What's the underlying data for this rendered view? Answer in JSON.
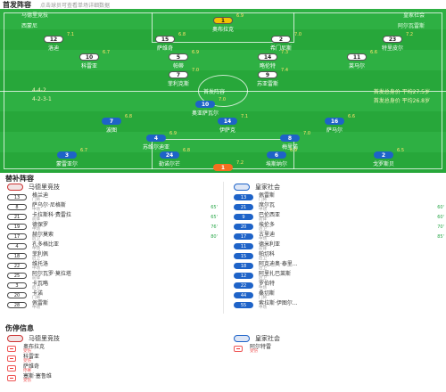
{
  "header": {
    "title": "首发阵容",
    "subtitle": "点击球员可查看单场详细数据"
  },
  "pitch": {
    "home_team": "马德里竞技",
    "away_team": "皇家社会",
    "home_formation": "4-4-2",
    "home_coach": "西蒙尼",
    "away_coach": "阿尔瓦雷斯",
    "stat_lines": [
      "4-4-2",
      "4-2-3-1",
      "首发总身价 平均27.5岁",
      "首发总身价 平均26.8岁"
    ],
    "center_label": "首发阵容",
    "home_players": [
      {
        "num": "1",
        "name": "奥布拉克",
        "rating": "6.9",
        "gk": true
      },
      {
        "num": "12",
        "name": "洛迪",
        "rating": "7.1"
      },
      {
        "num": "15",
        "name": "萨维奇",
        "rating": "6.8"
      },
      {
        "num": "2",
        "name": "希门尼斯",
        "rating": "7.0"
      },
      {
        "num": "23",
        "name": "特里皮尔",
        "rating": "7.2"
      },
      {
        "num": "10",
        "name": "科雷亚",
        "rating": "6.7"
      },
      {
        "num": "5",
        "name": "帕蒂",
        "rating": "6.9"
      },
      {
        "num": "14",
        "name": "略伦特",
        "rating": "7.3"
      },
      {
        "num": "11",
        "name": "莱马尔",
        "rating": "6.6"
      },
      {
        "num": "7",
        "name": "菲利克斯",
        "rating": "7.0"
      },
      {
        "num": "9",
        "name": "苏亚雷斯",
        "rating": "7.4"
      }
    ],
    "away_players": [
      {
        "num": "10",
        "name": "奥亚萨瓦尔",
        "rating": "7.0"
      },
      {
        "num": "7",
        "name": "波图",
        "rating": "6.8"
      },
      {
        "num": "14",
        "name": "伊萨克",
        "rating": "7.1"
      },
      {
        "num": "16",
        "name": "萨马尔",
        "rating": "6.6"
      },
      {
        "num": "4",
        "name": "苏维尔迪亚",
        "rating": "6.9"
      },
      {
        "num": "8",
        "name": "梅里诺",
        "rating": "7.0"
      },
      {
        "num": "3",
        "name": "蒙雷亚尔",
        "rating": "6.7"
      },
      {
        "num": "24",
        "name": "勒诺尔芒",
        "rating": "6.8"
      },
      {
        "num": "6",
        "name": "埃斯纳尔",
        "rating": "6.9"
      },
      {
        "num": "2",
        "name": "戈罗斯贝",
        "rating": "6.5"
      },
      {
        "num": "1",
        "name": "雷米罗",
        "rating": "7.2",
        "gk": true
      }
    ]
  },
  "subs": {
    "title": "替补阵容",
    "home": {
      "team": "马德里竞技",
      "players": [
        {
          "num": "13",
          "name": "格兰迪",
          "pos": "门将",
          "min": ""
        },
        {
          "num": "8",
          "name": "萨乌尔·尼格斯",
          "pos": "中场",
          "min": "65'"
        },
        {
          "num": "21",
          "name": "卡拉斯科·费雷拉",
          "pos": "前锋",
          "min": "65'"
        },
        {
          "num": "19",
          "name": "德保罗",
          "pos": "中场",
          "min": "76'"
        },
        {
          "num": "17",
          "name": "赫尔莫索",
          "pos": "后卫",
          "min": "80'"
        },
        {
          "num": "4",
          "name": "孔多格比亚",
          "pos": "中场",
          "min": ""
        },
        {
          "num": "18",
          "name": "菲利佩",
          "pos": "后卫",
          "min": ""
        },
        {
          "num": "22",
          "name": "维托洛",
          "pos": "中场",
          "min": ""
        },
        {
          "num": "25",
          "name": "阿尔瓦罗·莫拉塔",
          "pos": "前锋",
          "min": ""
        },
        {
          "num": "3",
          "name": "卡瓦略",
          "pos": "后卫",
          "min": ""
        },
        {
          "num": "20",
          "name": "卡诺",
          "pos": "门将",
          "min": ""
        },
        {
          "num": "28",
          "name": "佩雷斯",
          "pos": "中场",
          "min": ""
        }
      ]
    },
    "away": {
      "team": "皇家社会",
      "players": [
        {
          "num": "13",
          "name": "佩雷斯",
          "pos": "门将",
          "min": ""
        },
        {
          "num": "21",
          "name": "席尔瓦",
          "pos": "中场",
          "min": "60'"
        },
        {
          "num": "9",
          "name": "巴伦西亚",
          "pos": "前锋",
          "min": "60'"
        },
        {
          "num": "20",
          "name": "埃伦多",
          "pos": "后卫",
          "min": "70'"
        },
        {
          "num": "17",
          "name": "古里迪",
          "pos": "中场",
          "min": "85'"
        },
        {
          "num": "11",
          "name": "德米利亚",
          "pos": "前锋",
          "min": ""
        },
        {
          "num": "15",
          "name": "帕切科",
          "pos": "后卫",
          "min": ""
        },
        {
          "num": "18",
          "name": "阿克迪奥·泰里...",
          "pos": "后卫",
          "min": ""
        },
        {
          "num": "12",
          "name": "阿里扎巴莱斯",
          "pos": "后卫",
          "min": ""
        },
        {
          "num": "22",
          "name": "罗伯特",
          "pos": "中场",
          "min": ""
        },
        {
          "num": "44",
          "name": "桑切斯",
          "pos": "门将",
          "min": ""
        },
        {
          "num": "55",
          "name": "索拉斯·伊图尔...",
          "pos": "中场",
          "min": ""
        }
      ]
    }
  },
  "injuries": {
    "title": "伤停信息",
    "home": {
      "team": "马德里竞技",
      "players": [
        {
          "name": "奥布拉克",
          "reason": "受伤"
        },
        {
          "name": "科雷亚",
          "reason": "受伤"
        },
        {
          "name": "萨维奇",
          "reason": "停赛"
        },
        {
          "name": "塞斯·塞鲁维",
          "reason": "受伤"
        }
      ]
    },
    "away": {
      "team": "皇家社会",
      "players": [
        {
          "name": "阿尔特雷",
          "reason": "受伤"
        }
      ]
    }
  },
  "colors": {
    "pitch": "#27a73a",
    "home_kit": "#ffffff",
    "away_kit": "#1e63c8",
    "home_gk": "#f2c200",
    "away_gk": "#f46f1f",
    "sub_minute": "#2aa84a",
    "injury": "#e55555"
  }
}
